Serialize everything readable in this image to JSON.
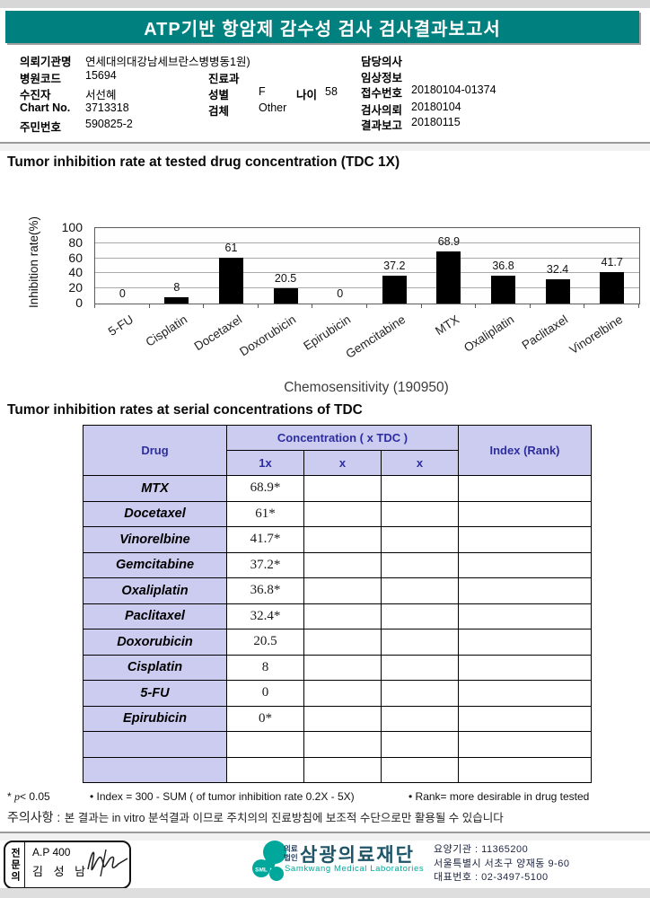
{
  "header": {
    "title": "ATP기반 항암제 감수성 검사 검사결과보고서"
  },
  "patient": {
    "left": [
      {
        "label": "의뢰기관명",
        "value": "연세대의대강남세브란스병병동1원)"
      },
      {
        "label": "병원코드",
        "value": "15694"
      },
      {
        "label": "수진자",
        "value": "서선혜"
      },
      {
        "label": "Chart No.",
        "value": "3713318"
      },
      {
        "label": "주민번호",
        "value": "590825-2"
      }
    ],
    "mid": {
      "dept_label": "진료과",
      "dept_value": "",
      "sex_label": "성별",
      "sex_value": "F",
      "age_label": "나이",
      "age_value": "58",
      "specimen_label": "검체",
      "specimen_value": "Other"
    },
    "right": [
      {
        "label": "담당의사",
        "value": ""
      },
      {
        "label": "임상정보",
        "value": ""
      },
      {
        "label": "접수번호",
        "value": "20180104-01374"
      },
      {
        "label": "검사의뢰",
        "value": "20180104"
      },
      {
        "label": "결과보고",
        "value": "20180115"
      }
    ]
  },
  "section1": {
    "title": "Tumor inhibition rate at tested drug concentration (TDC 1X)"
  },
  "chart_data": {
    "type": "bar",
    "title": "Chemosensitivity (190950)",
    "ylabel": "Inhibition rate(%)",
    "ylim": [
      0,
      100
    ],
    "yticks": [
      100,
      80,
      60,
      40,
      20,
      0
    ],
    "grid": true,
    "legend": false,
    "bar_color": "#000000",
    "categories": [
      "5-FU",
      "Cisplatin",
      "Docetaxel",
      "Doxorubicin",
      "Epirubicin",
      "Gemcitabine",
      "MTX",
      "Oxaliplatin",
      "Paclitaxel",
      "Vinorelbine"
    ],
    "values": [
      0,
      8,
      61,
      20.5,
      0,
      37.2,
      68.9,
      36.8,
      32.4,
      41.7
    ]
  },
  "section2": {
    "title": "Tumor inhibition rates at serial concentrations of TDC"
  },
  "table": {
    "col_drug": "Drug",
    "col_concentration": "Concentration ( x TDC )",
    "col_sub": [
      "1x",
      "x",
      "x"
    ],
    "col_index": "Index (Rank)",
    "rows": [
      {
        "drug": "MTX",
        "v1": "68.9*",
        "v2": "",
        "v3": "",
        "index": ""
      },
      {
        "drug": "Docetaxel",
        "v1": "61*",
        "v2": "",
        "v3": "",
        "index": ""
      },
      {
        "drug": "Vinorelbine",
        "v1": "41.7*",
        "v2": "",
        "v3": "",
        "index": ""
      },
      {
        "drug": "Gemcitabine",
        "v1": "37.2*",
        "v2": "",
        "v3": "",
        "index": ""
      },
      {
        "drug": "Oxaliplatin",
        "v1": "36.8*",
        "v2": "",
        "v3": "",
        "index": ""
      },
      {
        "drug": "Paclitaxel",
        "v1": "32.4*",
        "v2": "",
        "v3": "",
        "index": ""
      },
      {
        "drug": "Doxorubicin",
        "v1": "20.5",
        "v2": "",
        "v3": "",
        "index": ""
      },
      {
        "drug": "Cisplatin",
        "v1": "8",
        "v2": "",
        "v3": "",
        "index": ""
      },
      {
        "drug": "5-FU",
        "v1": "0",
        "v2": "",
        "v3": "",
        "index": ""
      },
      {
        "drug": "Epirubicin",
        "v1": "0*",
        "v2": "",
        "v3": "",
        "index": ""
      },
      {
        "drug": "",
        "v1": "",
        "v2": "",
        "v3": "",
        "index": ""
      },
      {
        "drug": "",
        "v1": "",
        "v2": "",
        "v3": "",
        "index": ""
      }
    ]
  },
  "notes": {
    "p_prefix": "* ",
    "p_italic": "p",
    "p_rest": "< 0.05",
    "index_note": "• Index = 300 - SUM ( of tumor inhibition rate 0.2X  -  5X)",
    "rank_note": "• Rank= more desirable in drug tested",
    "caution_label": "주의사항 :",
    "caution_text": "본 결과는 in vitro 분석결과 이므로 주치의의 진료방침에 보조적 수단으로만 활용될 수 있습니다"
  },
  "footer": {
    "sign_box": {
      "vertical_label": "전문의",
      "line1": "A.P 400",
      "line2": "김 성 남"
    },
    "logo": {
      "sml": "SML",
      "org_type_line1": "의료",
      "org_type_line2": "법인",
      "org_name": "삼광의료재단",
      "org_en": "Samkwang Medical Laboratories"
    },
    "contact": [
      "요양기관 : 11365200",
      "서울특별시 서초구 양재동 9-60",
      "대표번호 : 02-3497-5100"
    ]
  },
  "colors": {
    "header_teal": "#00807e",
    "table_lavender": "#ccccf0",
    "table_header_text": "#2d2d9e",
    "logo_teal": "#00a79b",
    "org_name_color": "#1e5468"
  }
}
